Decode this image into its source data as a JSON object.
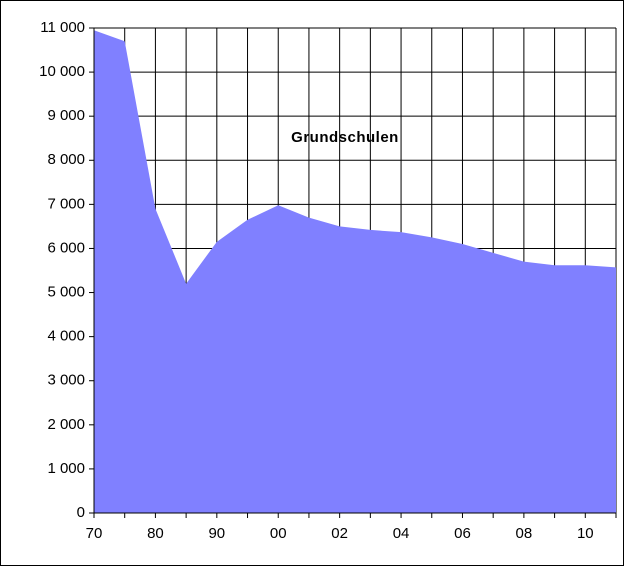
{
  "chart_data": {
    "type": "area",
    "title": "Grundschulen",
    "categories": [
      "70",
      null,
      "80",
      null,
      "90",
      null,
      "00",
      null,
      "02",
      null,
      "04",
      null,
      "06",
      null,
      "08",
      null,
      "10",
      null
    ],
    "values": [
      10950,
      10700,
      6900,
      5200,
      6150,
      6650,
      6980,
      6700,
      6500,
      6420,
      6370,
      6250,
      6100,
      5900,
      5700,
      5620,
      5620,
      5570
    ],
    "color": "#8080ff",
    "ylim": [
      0,
      11000
    ],
    "yticks": [
      0,
      {
        "value": 1000,
        "label": "1 000"
      },
      {
        "value": 2000,
        "label": "2 000"
      },
      {
        "value": 3000,
        "label": "3 000"
      },
      {
        "value": 4000,
        "label": "4 000"
      },
      {
        "value": 5000,
        "label": "5 000"
      },
      {
        "value": 6000,
        "label": "6 000"
      },
      {
        "value": 7000,
        "label": "7 000"
      },
      {
        "value": 8000,
        "label": "8 000"
      },
      {
        "value": 9000,
        "label": "9 000"
      },
      {
        "value": 10000,
        "label": "10 000"
      },
      {
        "value": 11000,
        "label": "11 000"
      }
    ],
    "grid": true
  }
}
